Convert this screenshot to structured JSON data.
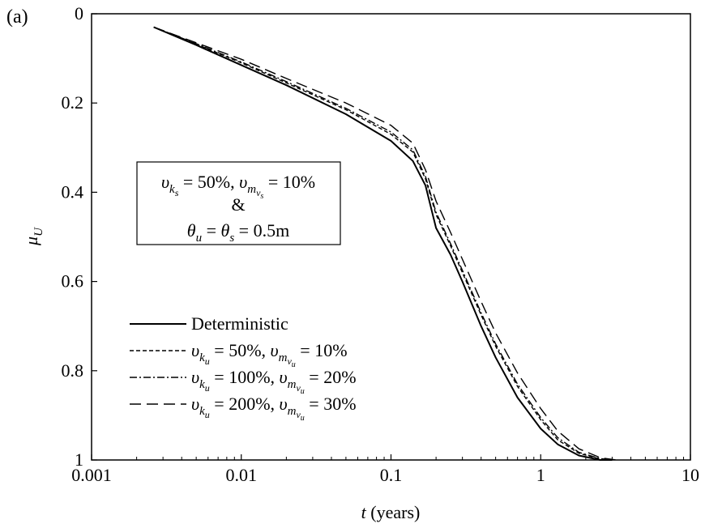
{
  "chart_data": {
    "type": "line",
    "panel_label": "(a)",
    "xlabel": {
      "italic": "t",
      "rest": " (years)"
    },
    "ylabel": {
      "main": "μ",
      "sub": "U"
    },
    "xscale": "log",
    "xlim": [
      0.001,
      10
    ],
    "ylim": [
      0,
      1
    ],
    "y_inverted": true,
    "grid": false,
    "legend_position": "bottom-left",
    "x_ticks": [
      0.001,
      0.01,
      0.1,
      1,
      10
    ],
    "x_tick_labels": [
      "0.001",
      "0.01",
      "0.1",
      "1",
      "10"
    ],
    "y_ticks": [
      0,
      0.2,
      0.4,
      0.6,
      0.8,
      1
    ],
    "y_tick_labels": [
      "0",
      "0.2",
      "0.4",
      "0.6",
      "0.8",
      "1"
    ],
    "annotation": {
      "line1": [
        {
          "t": "υ"
        },
        {
          "t": "k",
          "sub": 1
        },
        {
          "t": "s",
          "sub": 2
        },
        {
          "t": " = 50%, "
        },
        {
          "t": "υ"
        },
        {
          "t": "m",
          "sub": 1
        },
        {
          "t": "v",
          "sub": 2
        },
        {
          "t": "s",
          "sub": 3
        },
        {
          "t": " = 10%"
        }
      ],
      "line2": "&",
      "line3": [
        {
          "t": "θ"
        },
        {
          "t": "u",
          "sub": 1
        },
        {
          "t": " = "
        },
        {
          "t": "θ"
        },
        {
          "t": "s",
          "sub": 1
        },
        {
          "t": " = 0.5m"
        }
      ]
    },
    "series": [
      {
        "label": [
          {
            "t": "Deterministic"
          }
        ],
        "dash": "solid",
        "x": [
          0.0026,
          0.005,
          0.01,
          0.02,
          0.05,
          0.1,
          0.14,
          0.17,
          0.19,
          0.2,
          0.25,
          0.3,
          0.4,
          0.5,
          0.7,
          1.0,
          1.3,
          1.8,
          2.5,
          3.0
        ],
        "y": [
          0.03,
          0.07,
          0.115,
          0.16,
          0.225,
          0.285,
          0.33,
          0.385,
          0.45,
          0.48,
          0.54,
          0.6,
          0.7,
          0.77,
          0.86,
          0.93,
          0.965,
          0.99,
          1.0,
          1.0
        ]
      },
      {
        "label": [
          {
            "t": "υ"
          },
          {
            "t": "k",
            "sub": 1
          },
          {
            "t": "u",
            "sub": 2
          },
          {
            "t": " = 50%, "
          },
          {
            "t": "υ"
          },
          {
            "t": "m",
            "sub": 1
          },
          {
            "t": "v",
            "sub": 2
          },
          {
            "t": "u",
            "sub": 3
          },
          {
            "t": " = 10%"
          }
        ],
        "dash": "dashed",
        "x": [
          0.0026,
          0.005,
          0.01,
          0.02,
          0.05,
          0.1,
          0.14,
          0.17,
          0.2,
          0.25,
          0.3,
          0.4,
          0.5,
          0.7,
          1.0,
          1.3,
          1.8,
          2.5,
          3.0
        ],
        "y": [
          0.03,
          0.068,
          0.11,
          0.155,
          0.215,
          0.27,
          0.31,
          0.37,
          0.45,
          0.52,
          0.58,
          0.675,
          0.745,
          0.835,
          0.91,
          0.955,
          0.985,
          0.998,
          1.0
        ]
      },
      {
        "label": [
          {
            "t": "υ"
          },
          {
            "t": "k",
            "sub": 1
          },
          {
            "t": "u",
            "sub": 2
          },
          {
            "t": " = 100%, "
          },
          {
            "t": "υ"
          },
          {
            "t": "m",
            "sub": 1
          },
          {
            "t": "v",
            "sub": 2
          },
          {
            "t": "u",
            "sub": 3
          },
          {
            "t": " = 20%"
          }
        ],
        "dash": "dashdot",
        "x": [
          0.0026,
          0.005,
          0.01,
          0.02,
          0.05,
          0.1,
          0.14,
          0.17,
          0.2,
          0.25,
          0.3,
          0.4,
          0.5,
          0.7,
          1.0,
          1.3,
          1.8,
          2.5,
          3.0
        ],
        "y": [
          0.03,
          0.067,
          0.108,
          0.152,
          0.212,
          0.265,
          0.305,
          0.365,
          0.445,
          0.515,
          0.575,
          0.67,
          0.74,
          0.83,
          0.905,
          0.95,
          0.983,
          0.997,
          1.0
        ]
      },
      {
        "label": [
          {
            "t": "υ"
          },
          {
            "t": "k",
            "sub": 1
          },
          {
            "t": "u",
            "sub": 2
          },
          {
            "t": " = 200%, "
          },
          {
            "t": "υ"
          },
          {
            "t": "m",
            "sub": 1
          },
          {
            "t": "v",
            "sub": 2
          },
          {
            "t": "u",
            "sub": 3
          },
          {
            "t": " = 30%"
          }
        ],
        "dash": "longdash",
        "x": [
          0.0026,
          0.005,
          0.01,
          0.02,
          0.05,
          0.1,
          0.14,
          0.17,
          0.2,
          0.25,
          0.3,
          0.4,
          0.5,
          0.7,
          1.0,
          1.3,
          1.8,
          2.5,
          3.2
        ],
        "y": [
          0.03,
          0.065,
          0.102,
          0.145,
          0.2,
          0.25,
          0.29,
          0.35,
          0.42,
          0.49,
          0.55,
          0.645,
          0.715,
          0.805,
          0.885,
          0.935,
          0.975,
          0.995,
          1.0
        ]
      }
    ]
  }
}
